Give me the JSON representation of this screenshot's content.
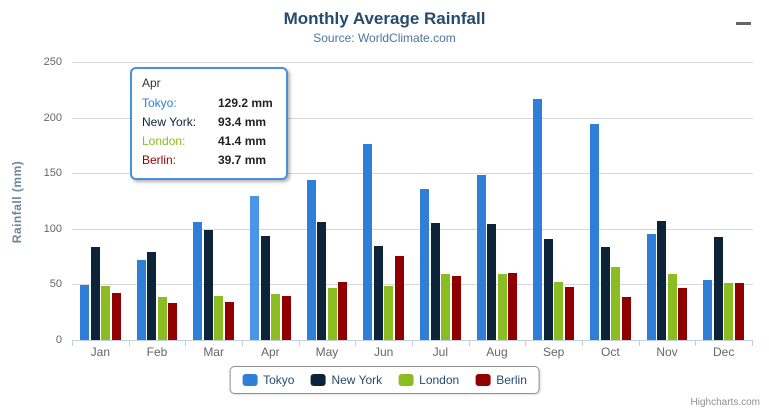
{
  "header": {
    "title": "Monthly Average Rainfall",
    "subtitle": "Source: WorldClimate.com",
    "menu_icon": "hamburger-icon"
  },
  "chart_data": {
    "type": "bar",
    "title": "Monthly Average Rainfall",
    "subtitle": "Source: WorldClimate.com",
    "xlabel": "",
    "ylabel": "Rainfall (mm)",
    "ylim": [
      0,
      250
    ],
    "yticks": [
      0,
      50,
      100,
      150,
      200,
      250
    ],
    "grid": true,
    "legend_position": "bottom-center",
    "categories": [
      "Jan",
      "Feb",
      "Mar",
      "Apr",
      "May",
      "Jun",
      "Jul",
      "Aug",
      "Sep",
      "Oct",
      "Nov",
      "Dec"
    ],
    "series": [
      {
        "name": "Tokyo",
        "color": "#2f7ed8",
        "values": [
          49.9,
          71.5,
          106.4,
          129.2,
          144.0,
          176.0,
          135.6,
          148.5,
          216.4,
          194.1,
          95.6,
          54.4
        ]
      },
      {
        "name": "New York",
        "color": "#0d233a",
        "values": [
          83.6,
          78.8,
          98.5,
          93.4,
          106.0,
          84.5,
          105.0,
          104.3,
          91.2,
          83.5,
          106.6,
          92.3
        ]
      },
      {
        "name": "London",
        "color": "#8bbc21",
        "values": [
          48.9,
          38.8,
          39.3,
          41.4,
          47.0,
          48.3,
          59.0,
          59.6,
          52.4,
          65.2,
          59.3,
          51.2
        ]
      },
      {
        "name": "Berlin",
        "color": "#910000",
        "values": [
          42.4,
          33.2,
          34.5,
          39.7,
          52.6,
          75.5,
          57.4,
          60.4,
          47.6,
          39.1,
          46.8,
          51.1
        ]
      }
    ],
    "hover_point": {
      "series": "Tokyo",
      "category": "Apr",
      "color": "#4a94ea"
    }
  },
  "tooltip": {
    "header": "Apr",
    "border_color": "#4790e0",
    "rows": [
      {
        "label": "Tokyo:",
        "color": "#2f7ed8",
        "value": "129.2 mm"
      },
      {
        "label": "New York:",
        "color": "#0d233a",
        "value": "93.4 mm"
      },
      {
        "label": "London:",
        "color": "#8bbc21",
        "value": "41.4 mm"
      },
      {
        "label": "Berlin:",
        "color": "#910000",
        "value": "39.7 mm"
      }
    ]
  },
  "legend": {
    "items": [
      {
        "label": "Tokyo",
        "color": "#2f7ed8"
      },
      {
        "label": "New York",
        "color": "#0d233a"
      },
      {
        "label": "London",
        "color": "#8bbc21"
      },
      {
        "label": "Berlin",
        "color": "#910000"
      }
    ]
  },
  "credits": {
    "label": "Highcharts.com"
  }
}
